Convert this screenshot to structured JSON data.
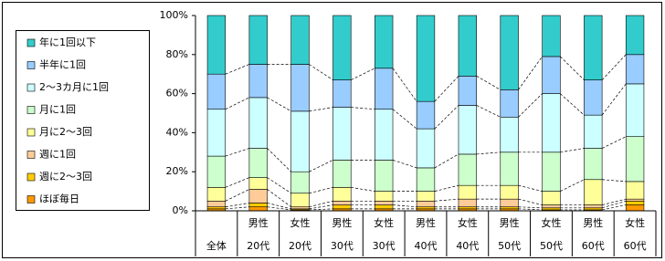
{
  "chart_data": {
    "type": "stacked_bar_100",
    "categories": [
      [
        "全体"
      ],
      [
        "男性",
        "20代"
      ],
      [
        "女性",
        "20代"
      ],
      [
        "男性",
        "30代"
      ],
      [
        "女性",
        "30代"
      ],
      [
        "男性",
        "40代"
      ],
      [
        "女性",
        "40代"
      ],
      [
        "男性",
        "50代"
      ],
      [
        "女性",
        "50代"
      ],
      [
        "男性",
        "60代"
      ],
      [
        "女性",
        "60代"
      ]
    ],
    "series": [
      {
        "name": "ほぼ毎日",
        "color": "#ff9900",
        "values": [
          1,
          2,
          0.5,
          1,
          1,
          1,
          1,
          1,
          0.5,
          0.5,
          3
        ]
      },
      {
        "name": "週に2～3回",
        "color": "#ffcc00",
        "values": [
          1,
          2,
          0.5,
          2,
          2,
          1,
          1,
          1,
          1,
          1,
          2
        ]
      },
      {
        "name": "週に1回",
        "color": "#ffcc99",
        "values": [
          3,
          7,
          1,
          2,
          2,
          3,
          4,
          4,
          1.5,
          1.5,
          1
        ]
      },
      {
        "name": "月に2～3回",
        "color": "#ffff99",
        "values": [
          7,
          6,
          7,
          7,
          5,
          5,
          7,
          7,
          7,
          13,
          9
        ]
      },
      {
        "name": "月に1回",
        "color": "#ccffcc",
        "values": [
          16,
          15,
          11,
          14,
          16,
          12,
          16,
          17,
          20,
          16,
          23
        ]
      },
      {
        "name": "2～3カ月に1回",
        "color": "#ccffff",
        "values": [
          24,
          26,
          31,
          27,
          26,
          20,
          25,
          18,
          30,
          17,
          27
        ]
      },
      {
        "name": "半年に1回",
        "color": "#99ccff",
        "values": [
          18,
          17,
          24,
          14,
          21,
          14,
          15,
          14,
          19,
          18,
          15
        ]
      },
      {
        "name": "年に1回以下",
        "color": "#33cccc",
        "values": [
          30,
          25,
          25,
          33,
          27,
          44,
          31,
          38,
          21,
          33,
          20
        ]
      }
    ],
    "ylim": [
      0,
      100
    ],
    "yticks": [
      {
        "value": 0,
        "label": "0%"
      },
      {
        "value": 20,
        "label": "20%"
      },
      {
        "value": 40,
        "label": "40%"
      },
      {
        "value": 60,
        "label": "60%"
      },
      {
        "value": 80,
        "label": "80%"
      },
      {
        "value": 100,
        "label": "100%"
      }
    ],
    "series_lines": true,
    "legend": "left"
  }
}
